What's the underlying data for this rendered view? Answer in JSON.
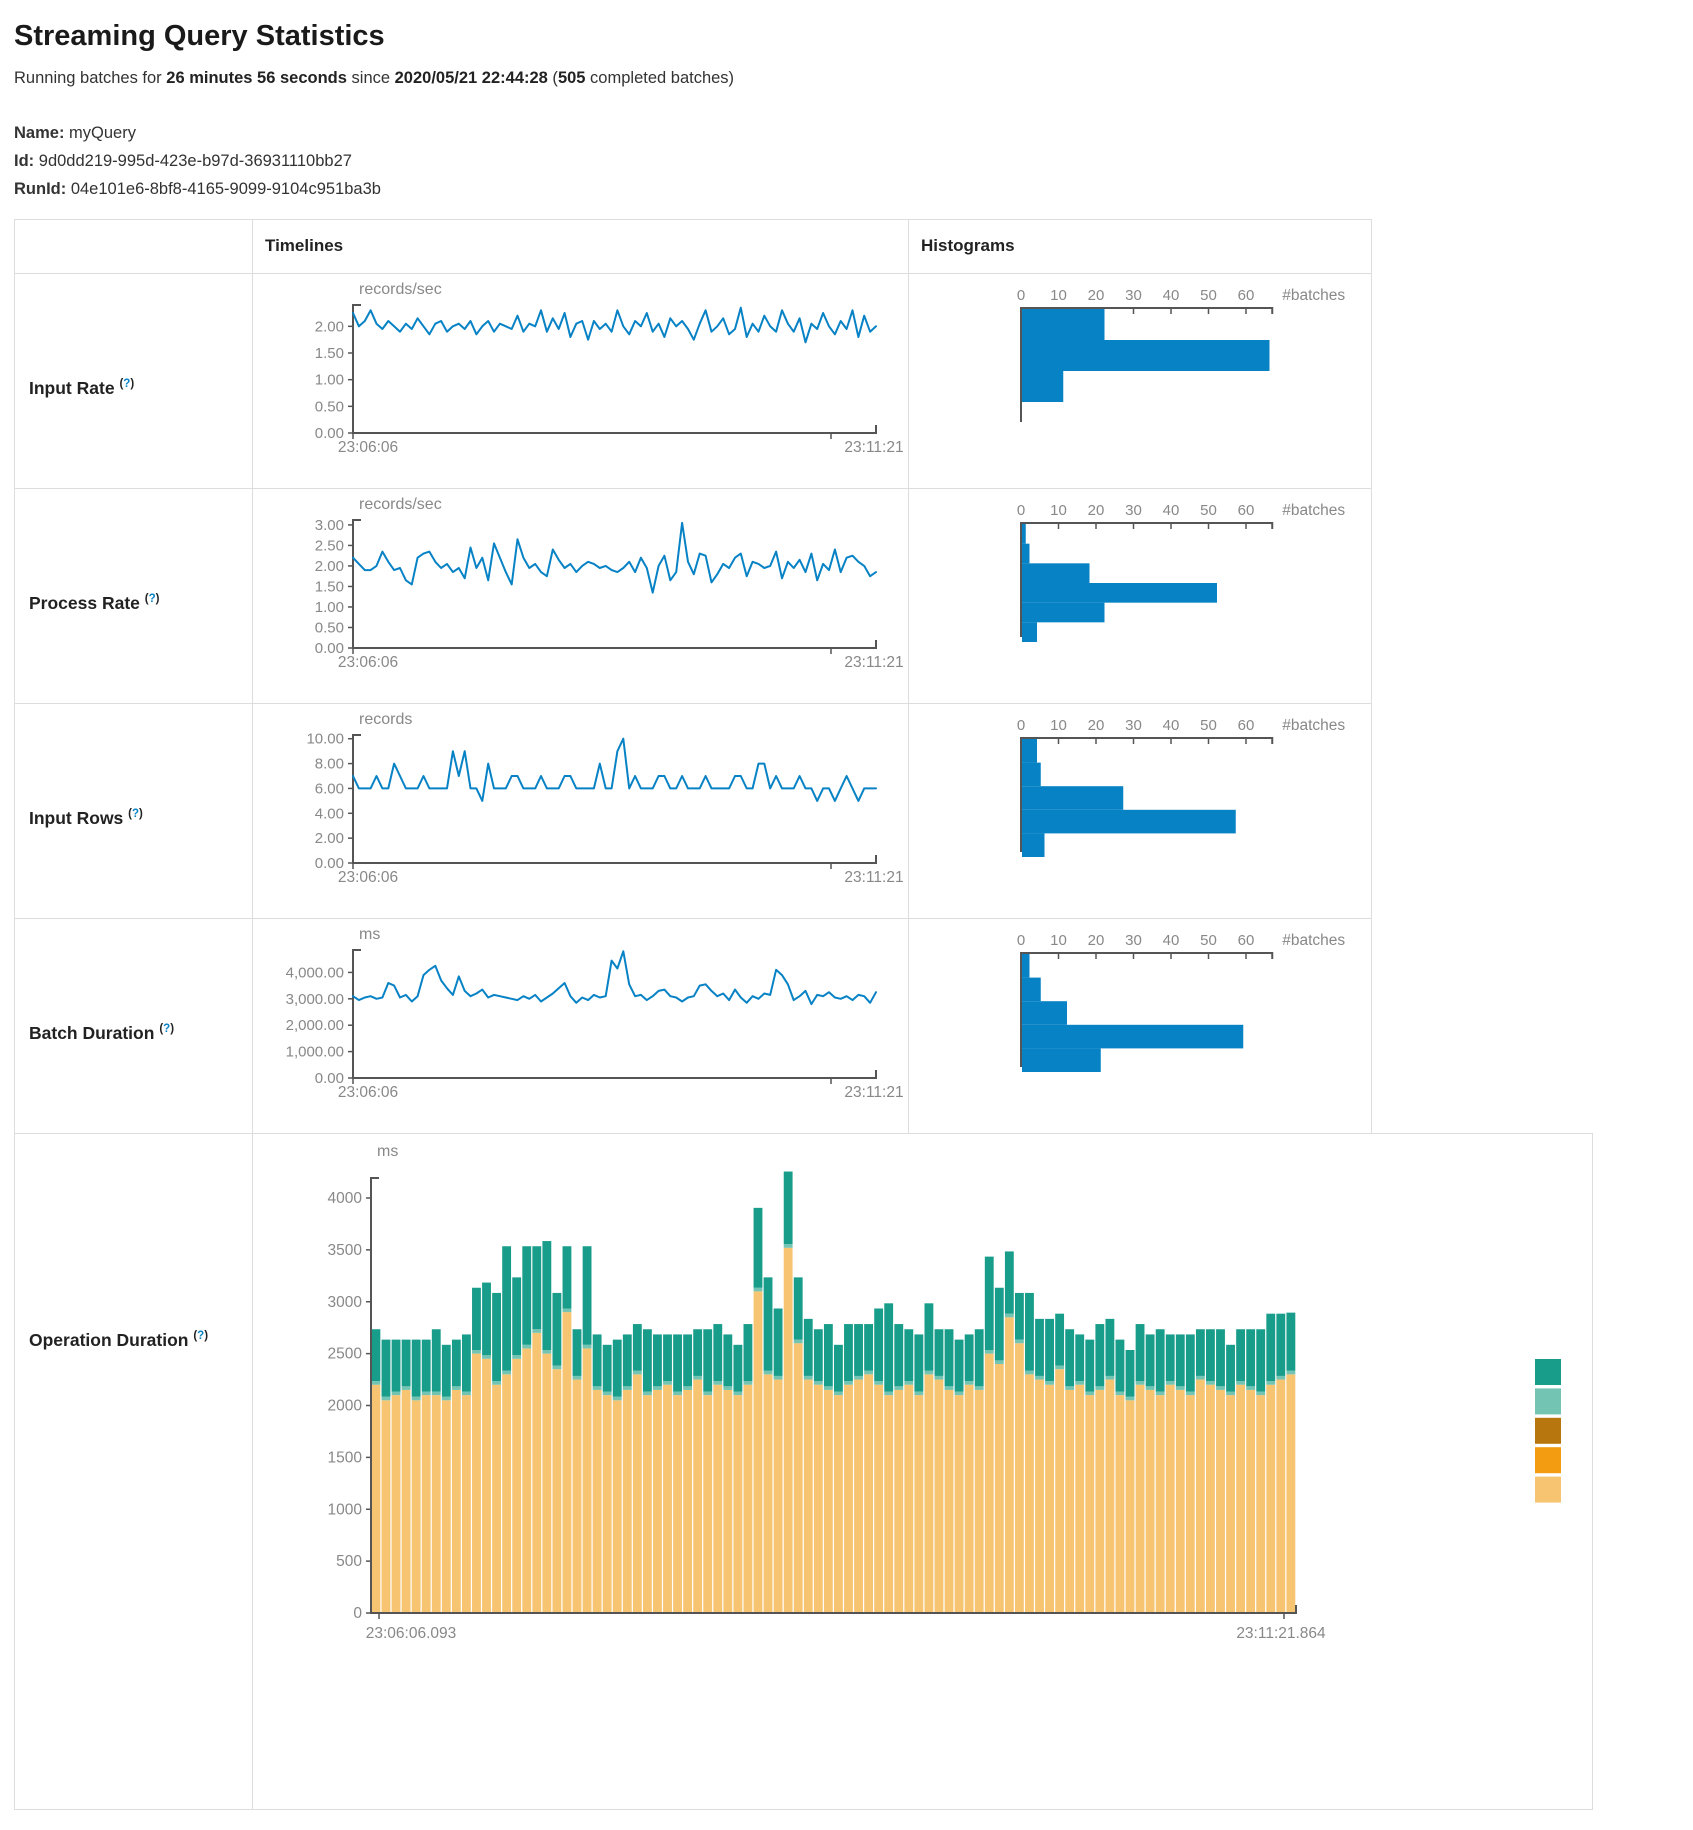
{
  "page": {
    "title": "Streaming Query Statistics",
    "subtitle": {
      "prefix": "Running batches for ",
      "duration": "26 minutes 56 seconds",
      "mid": " since ",
      "start_time": "2020/05/21 22:44:28",
      "paren_open": " (",
      "batch_count": "505",
      "suffix": " completed batches)"
    },
    "query": {
      "name_label": "Name:",
      "name": "myQuery",
      "id_label": "Id:",
      "id": "9d0dd219-995d-423e-b97d-36931110bb27",
      "runid_label": "RunId:",
      "runid": "04e101e6-8bf8-4165-9099-9104c951ba3b"
    }
  },
  "table": {
    "col_timelines": "Timelines",
    "col_histograms": "Histograms",
    "help_open": "(",
    "help_symbol": "?",
    "help_close": ")"
  },
  "rows": [
    {
      "label": "Input Rate"
    },
    {
      "label": "Process Rate"
    },
    {
      "label": "Input Rows"
    },
    {
      "label": "Batch Duration"
    },
    {
      "label": "Operation Duration"
    }
  ],
  "colors": {
    "series_blue": "#0782c5",
    "axis": "#555",
    "tick_text": "#888",
    "teal": "#199d8b",
    "light_teal": "#74c4b4",
    "dark_amber": "#b8770e",
    "orange": "#f39c12",
    "light_orange": "#f7c471"
  },
  "chart_data": [
    {
      "id": "input-rate",
      "type": "line+histogram",
      "timeline": {
        "type": "line",
        "title": "records/sec",
        "color": "#0782c5",
        "ylim": [
          0,
          2.4
        ],
        "yticks": [
          0,
          0.5,
          1.0,
          1.5,
          2.0
        ],
        "ytick_labels": [
          "0.00",
          "0.50",
          "1.00",
          "1.50",
          "2.00"
        ],
        "x_start_label": "23:06:06",
        "x_end_label": "23:11:21",
        "values": [
          2.25,
          2.0,
          2.1,
          2.3,
          2.05,
          1.95,
          2.1,
          2.0,
          1.9,
          2.05,
          1.95,
          2.15,
          2.0,
          1.85,
          2.05,
          2.1,
          1.9,
          2.0,
          2.05,
          1.95,
          2.1,
          1.85,
          2.0,
          2.1,
          1.9,
          2.05,
          2.0,
          1.95,
          2.2,
          1.9,
          2.05,
          2.0,
          2.3,
          1.9,
          2.15,
          1.95,
          2.25,
          1.8,
          2.05,
          2.1,
          1.75,
          2.1,
          1.95,
          2.05,
          1.9,
          2.3,
          2.0,
          1.85,
          2.1,
          2.0,
          2.25,
          1.9,
          2.05,
          1.8,
          2.15,
          2.0,
          2.1,
          1.95,
          1.75,
          2.05,
          2.3,
          1.9,
          2.0,
          2.15,
          1.85,
          1.95,
          2.35,
          1.8,
          2.05,
          1.9,
          2.2,
          2.0,
          1.9,
          2.3,
          2.05,
          1.9,
          2.15,
          1.7,
          2.05,
          1.95,
          2.25,
          2.0,
          1.85,
          2.1,
          1.95,
          2.3,
          1.8,
          2.2,
          1.9,
          2.0
        ]
      },
      "histogram": {
        "type": "bar",
        "orientation": "horizontal",
        "xlabel": "#batches",
        "xlim": [
          0,
          67
        ],
        "xticks": [
          0,
          10,
          20,
          30,
          40,
          50,
          60
        ],
        "values": [
          22,
          66,
          11
        ]
      }
    },
    {
      "id": "process-rate",
      "type": "line+histogram",
      "timeline": {
        "type": "line",
        "title": "records/sec",
        "color": "#0782c5",
        "ylim": [
          0,
          3.12
        ],
        "yticks": [
          0,
          0.5,
          1.0,
          1.5,
          2.0,
          2.5,
          3.0
        ],
        "ytick_labels": [
          "0.00",
          "0.50",
          "1.00",
          "1.50",
          "2.00",
          "2.50",
          "3.00"
        ],
        "x_start_label": "23:06:06",
        "x_end_label": "23:11:21",
        "values": [
          2.2,
          2.05,
          1.9,
          1.9,
          2.0,
          2.35,
          2.1,
          1.9,
          1.95,
          1.65,
          1.55,
          2.2,
          2.3,
          2.35,
          2.1,
          1.95,
          2.05,
          1.85,
          1.95,
          1.7,
          2.45,
          1.95,
          2.2,
          1.65,
          2.55,
          2.2,
          1.85,
          1.55,
          2.65,
          2.2,
          1.95,
          2.05,
          1.85,
          1.75,
          2.4,
          2.15,
          1.95,
          2.05,
          1.85,
          2.0,
          2.1,
          2.05,
          1.95,
          2.0,
          1.9,
          1.85,
          1.95,
          2.1,
          1.85,
          2.2,
          1.95,
          1.35,
          2.0,
          2.25,
          1.65,
          1.85,
          3.05,
          2.1,
          1.8,
          2.3,
          2.25,
          1.6,
          1.8,
          2.05,
          1.95,
          2.2,
          2.3,
          1.75,
          2.1,
          2.05,
          1.95,
          2.0,
          2.35,
          1.7,
          2.1,
          1.95,
          2.15,
          1.85,
          2.3,
          1.65,
          2.05,
          1.9,
          2.4,
          1.85,
          2.2,
          2.25,
          2.1,
          2.0,
          1.75,
          1.85
        ]
      },
      "histogram": {
        "type": "bar",
        "orientation": "horizontal",
        "xlabel": "#batches",
        "xlim": [
          0,
          67
        ],
        "xticks": [
          0,
          10,
          20,
          30,
          40,
          50,
          60
        ],
        "values": [
          1,
          2,
          18,
          52,
          22,
          4
        ]
      }
    },
    {
      "id": "input-rows",
      "type": "line+histogram",
      "timeline": {
        "type": "line",
        "title": "records",
        "color": "#0782c5",
        "ylim": [
          0,
          10.3
        ],
        "yticks": [
          0,
          2,
          4,
          6,
          8,
          10
        ],
        "ytick_labels": [
          "0.00",
          "2.00",
          "4.00",
          "6.00",
          "8.00",
          "10.00"
        ],
        "x_start_label": "23:06:06",
        "x_end_label": "23:11:21",
        "values": [
          7,
          6,
          6,
          6,
          7,
          6,
          6,
          8,
          7,
          6,
          6,
          6,
          7,
          6,
          6,
          6,
          6,
          9,
          7,
          9,
          6,
          6,
          5,
          8,
          6,
          6,
          6,
          7,
          7,
          6,
          6,
          6,
          7,
          6,
          6,
          6,
          7,
          7,
          6,
          6,
          6,
          6,
          8,
          6,
          6,
          9,
          10,
          6,
          7,
          6,
          6,
          6,
          7,
          7,
          6,
          6,
          7,
          6,
          6,
          6,
          7,
          6,
          6,
          6,
          6,
          7,
          7,
          6,
          6,
          8,
          8,
          6,
          7,
          6,
          6,
          6,
          7,
          6,
          6,
          5,
          6,
          6,
          5,
          6,
          7,
          6,
          5,
          6,
          6,
          6
        ]
      },
      "histogram": {
        "type": "bar",
        "orientation": "horizontal",
        "xlabel": "#batches",
        "xlim": [
          0,
          67
        ],
        "xticks": [
          0,
          10,
          20,
          30,
          40,
          50,
          60
        ],
        "values": [
          4,
          5,
          27,
          57,
          6
        ]
      }
    },
    {
      "id": "batch-duration",
      "type": "line+histogram",
      "timeline": {
        "type": "line",
        "title": "ms",
        "color": "#0782c5",
        "ylim": [
          0,
          4850
        ],
        "yticks": [
          0,
          1000,
          2000,
          3000,
          4000
        ],
        "ytick_labels": [
          "0.00",
          "1,000.00",
          "2,000.00",
          "3,000.00",
          "4,000.00"
        ],
        "x_start_label": "23:06:06",
        "x_end_label": "23:11:21",
        "values": [
          3100,
          2950,
          3050,
          3100,
          3000,
          3050,
          3600,
          3500,
          3050,
          3150,
          2900,
          3100,
          3900,
          4100,
          4250,
          3700,
          3400,
          3150,
          3850,
          3300,
          3100,
          3200,
          3350,
          3050,
          3150,
          3100,
          3050,
          3000,
          2950,
          3100,
          3000,
          3150,
          2900,
          3050,
          3200,
          3400,
          3600,
          3100,
          2850,
          3050,
          2950,
          3150,
          3050,
          3100,
          4450,
          4150,
          4800,
          3550,
          3100,
          3150,
          2950,
          3100,
          3300,
          3350,
          3100,
          3050,
          2900,
          3050,
          3100,
          3500,
          3550,
          3300,
          3100,
          3200,
          2950,
          3350,
          3050,
          2850,
          3100,
          3000,
          3200,
          3150,
          4100,
          3900,
          3550,
          2950,
          3100,
          3300,
          2800,
          3150,
          3100,
          3250,
          3050,
          3000,
          3100,
          2950,
          3150,
          3100,
          2850,
          3250
        ]
      },
      "histogram": {
        "type": "bar",
        "orientation": "horizontal",
        "xlabel": "#batches",
        "xlim": [
          0,
          67
        ],
        "xticks": [
          0,
          10,
          20,
          30,
          40,
          50,
          60
        ],
        "values": [
          2,
          5,
          12,
          59,
          21
        ]
      }
    },
    {
      "id": "operation-duration",
      "type": "stacked-bar",
      "title": "ms",
      "ylim": [
        0,
        4300
      ],
      "yticks": [
        0,
        500,
        1000,
        1500,
        2000,
        2500,
        3000,
        3500,
        4000
      ],
      "ytick_labels": [
        "0",
        "500",
        "1000",
        "1500",
        "2000",
        "2500",
        "3000",
        "3500",
        "4000"
      ],
      "x_start_label": "23:06:06.093",
      "x_end_label": "23:11:21.864",
      "legend_swatches": [
        "#199d8b",
        "#74c4b4",
        "#b8770e",
        "#f39c12",
        "#f7c471"
      ],
      "series": [
        {
          "name": "bottom-segment",
          "color": "#f7c471",
          "values": [
            2200,
            2050,
            2100,
            2150,
            2050,
            2100,
            2100,
            2050,
            2150,
            2100,
            2500,
            2450,
            2200,
            2300,
            2450,
            2550,
            2700,
            2500,
            2350,
            2900,
            2250,
            2550,
            2150,
            2100,
            2050,
            2150,
            2300,
            2100,
            2150,
            2200,
            2100,
            2150,
            2250,
            2100,
            2200,
            2150,
            2100,
            2200,
            3100,
            2300,
            2250,
            3520,
            2600,
            2250,
            2200,
            2150,
            2100,
            2200,
            2250,
            2300,
            2200,
            2100,
            2150,
            2200,
            2100,
            2300,
            2250,
            2150,
            2100,
            2200,
            2150,
            2500,
            2400,
            2850,
            2600,
            2300,
            2250,
            2200,
            2350,
            2150,
            2200,
            2100,
            2150,
            2250,
            2100,
            2050,
            2200,
            2150,
            2100,
            2200,
            2150,
            2100,
            2250,
            2200,
            2150,
            2100,
            2200,
            2150,
            2100,
            2200,
            2250,
            2300
          ]
        },
        {
          "name": "middle-segment",
          "color": "#74c4b4",
          "values": [
            35,
            35,
            35,
            35,
            35,
            35,
            35,
            35,
            35,
            35,
            35,
            35,
            35,
            35,
            35,
            35,
            35,
            35,
            35,
            35,
            35,
            35,
            35,
            35,
            35,
            35,
            35,
            35,
            35,
            35,
            35,
            35,
            35,
            35,
            35,
            35,
            35,
            35,
            35,
            35,
            35,
            35,
            35,
            35,
            35,
            35,
            35,
            35,
            35,
            35,
            35,
            35,
            35,
            35,
            35,
            35,
            35,
            35,
            35,
            35,
            35,
            35,
            35,
            35,
            35,
            35,
            35,
            35,
            35,
            35,
            35,
            35,
            35,
            35,
            35,
            35,
            35,
            35,
            35,
            35,
            35,
            35,
            35,
            35,
            35,
            35,
            35,
            35,
            35,
            35,
            35,
            35
          ]
        },
        {
          "name": "top-segment",
          "color": "#199d8b",
          "values": [
            500,
            550,
            500,
            450,
            550,
            500,
            600,
            500,
            450,
            550,
            600,
            700,
            850,
            1200,
            750,
            950,
            800,
            1050,
            700,
            600,
            450,
            950,
            500,
            450,
            550,
            500,
            450,
            600,
            500,
            450,
            550,
            500,
            450,
            600,
            550,
            500,
            450,
            550,
            770,
            900,
            650,
            700,
            600,
            550,
            500,
            600,
            450,
            550,
            500,
            450,
            700,
            850,
            600,
            500,
            550,
            650,
            450,
            550,
            500,
            450,
            550,
            900,
            700,
            600,
            450,
            750,
            550,
            600,
            500,
            550,
            450,
            500,
            600,
            550,
            500,
            450,
            550,
            500,
            600,
            450,
            500,
            550,
            450,
            500,
            550,
            450,
            500,
            550,
            600,
            650,
            600,
            560
          ]
        }
      ]
    }
  ]
}
